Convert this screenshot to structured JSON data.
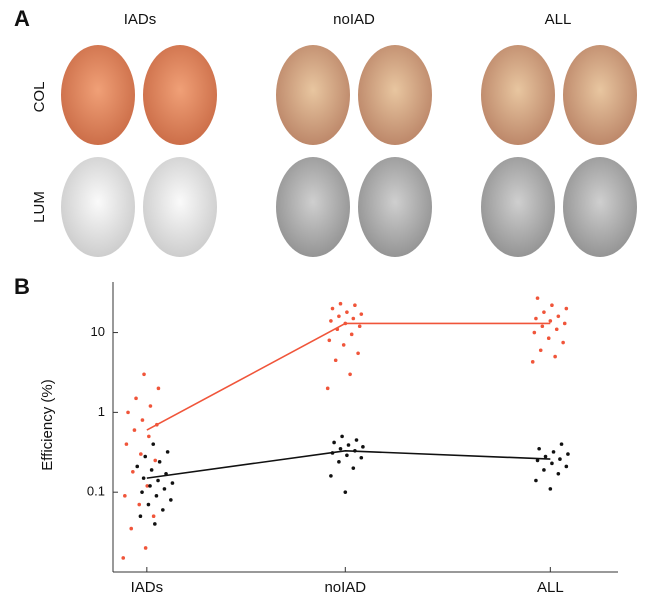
{
  "figure": {
    "panel_labels": [
      "A",
      "B"
    ],
    "columns": [
      "IADs",
      "noIAD",
      "ALL"
    ],
    "rows": [
      "COL",
      "LUM"
    ]
  },
  "chart_data": {
    "type": "line",
    "ylabel": "Efficiency (%)",
    "log_y": true,
    "categories": [
      "IADs",
      "noIAD",
      "ALL"
    ],
    "ylim": [
      0.01,
      43
    ],
    "yticks": [
      0.1,
      1,
      10
    ],
    "series": [
      {
        "color": "#f0553a",
        "values": [
          0.6,
          13,
          13
        ],
        "points": [
          [
            0.015,
            0.02,
            0.035,
            0.05,
            0.07,
            0.09,
            0.12,
            0.18,
            0.25,
            0.3,
            0.4,
            0.5,
            0.6,
            0.7,
            0.8,
            1.0,
            1.2,
            1.5,
            2.0,
            3.0
          ],
          [
            2.0,
            3.0,
            4.5,
            5.5,
            7.0,
            8.0,
            9.5,
            11,
            12,
            13,
            14,
            15,
            16,
            17,
            18,
            20,
            22,
            23
          ],
          [
            4.3,
            5.0,
            6.0,
            7.5,
            8.5,
            10,
            11,
            12,
            13,
            14,
            15,
            16,
            18,
            20,
            22,
            27
          ]
        ]
      },
      {
        "color": "#111111",
        "values": [
          0.15,
          0.33,
          0.26
        ],
        "points": [
          [
            0.04,
            0.05,
            0.06,
            0.07,
            0.08,
            0.09,
            0.1,
            0.11,
            0.12,
            0.13,
            0.14,
            0.15,
            0.17,
            0.19,
            0.21,
            0.24,
            0.28,
            0.32,
            0.4
          ],
          [
            0.1,
            0.16,
            0.2,
            0.24,
            0.27,
            0.29,
            0.31,
            0.33,
            0.35,
            0.37,
            0.39,
            0.42,
            0.45,
            0.5
          ],
          [
            0.11,
            0.14,
            0.17,
            0.19,
            0.21,
            0.23,
            0.25,
            0.26,
            0.28,
            0.3,
            0.32,
            0.35,
            0.4
          ]
        ]
      }
    ]
  }
}
